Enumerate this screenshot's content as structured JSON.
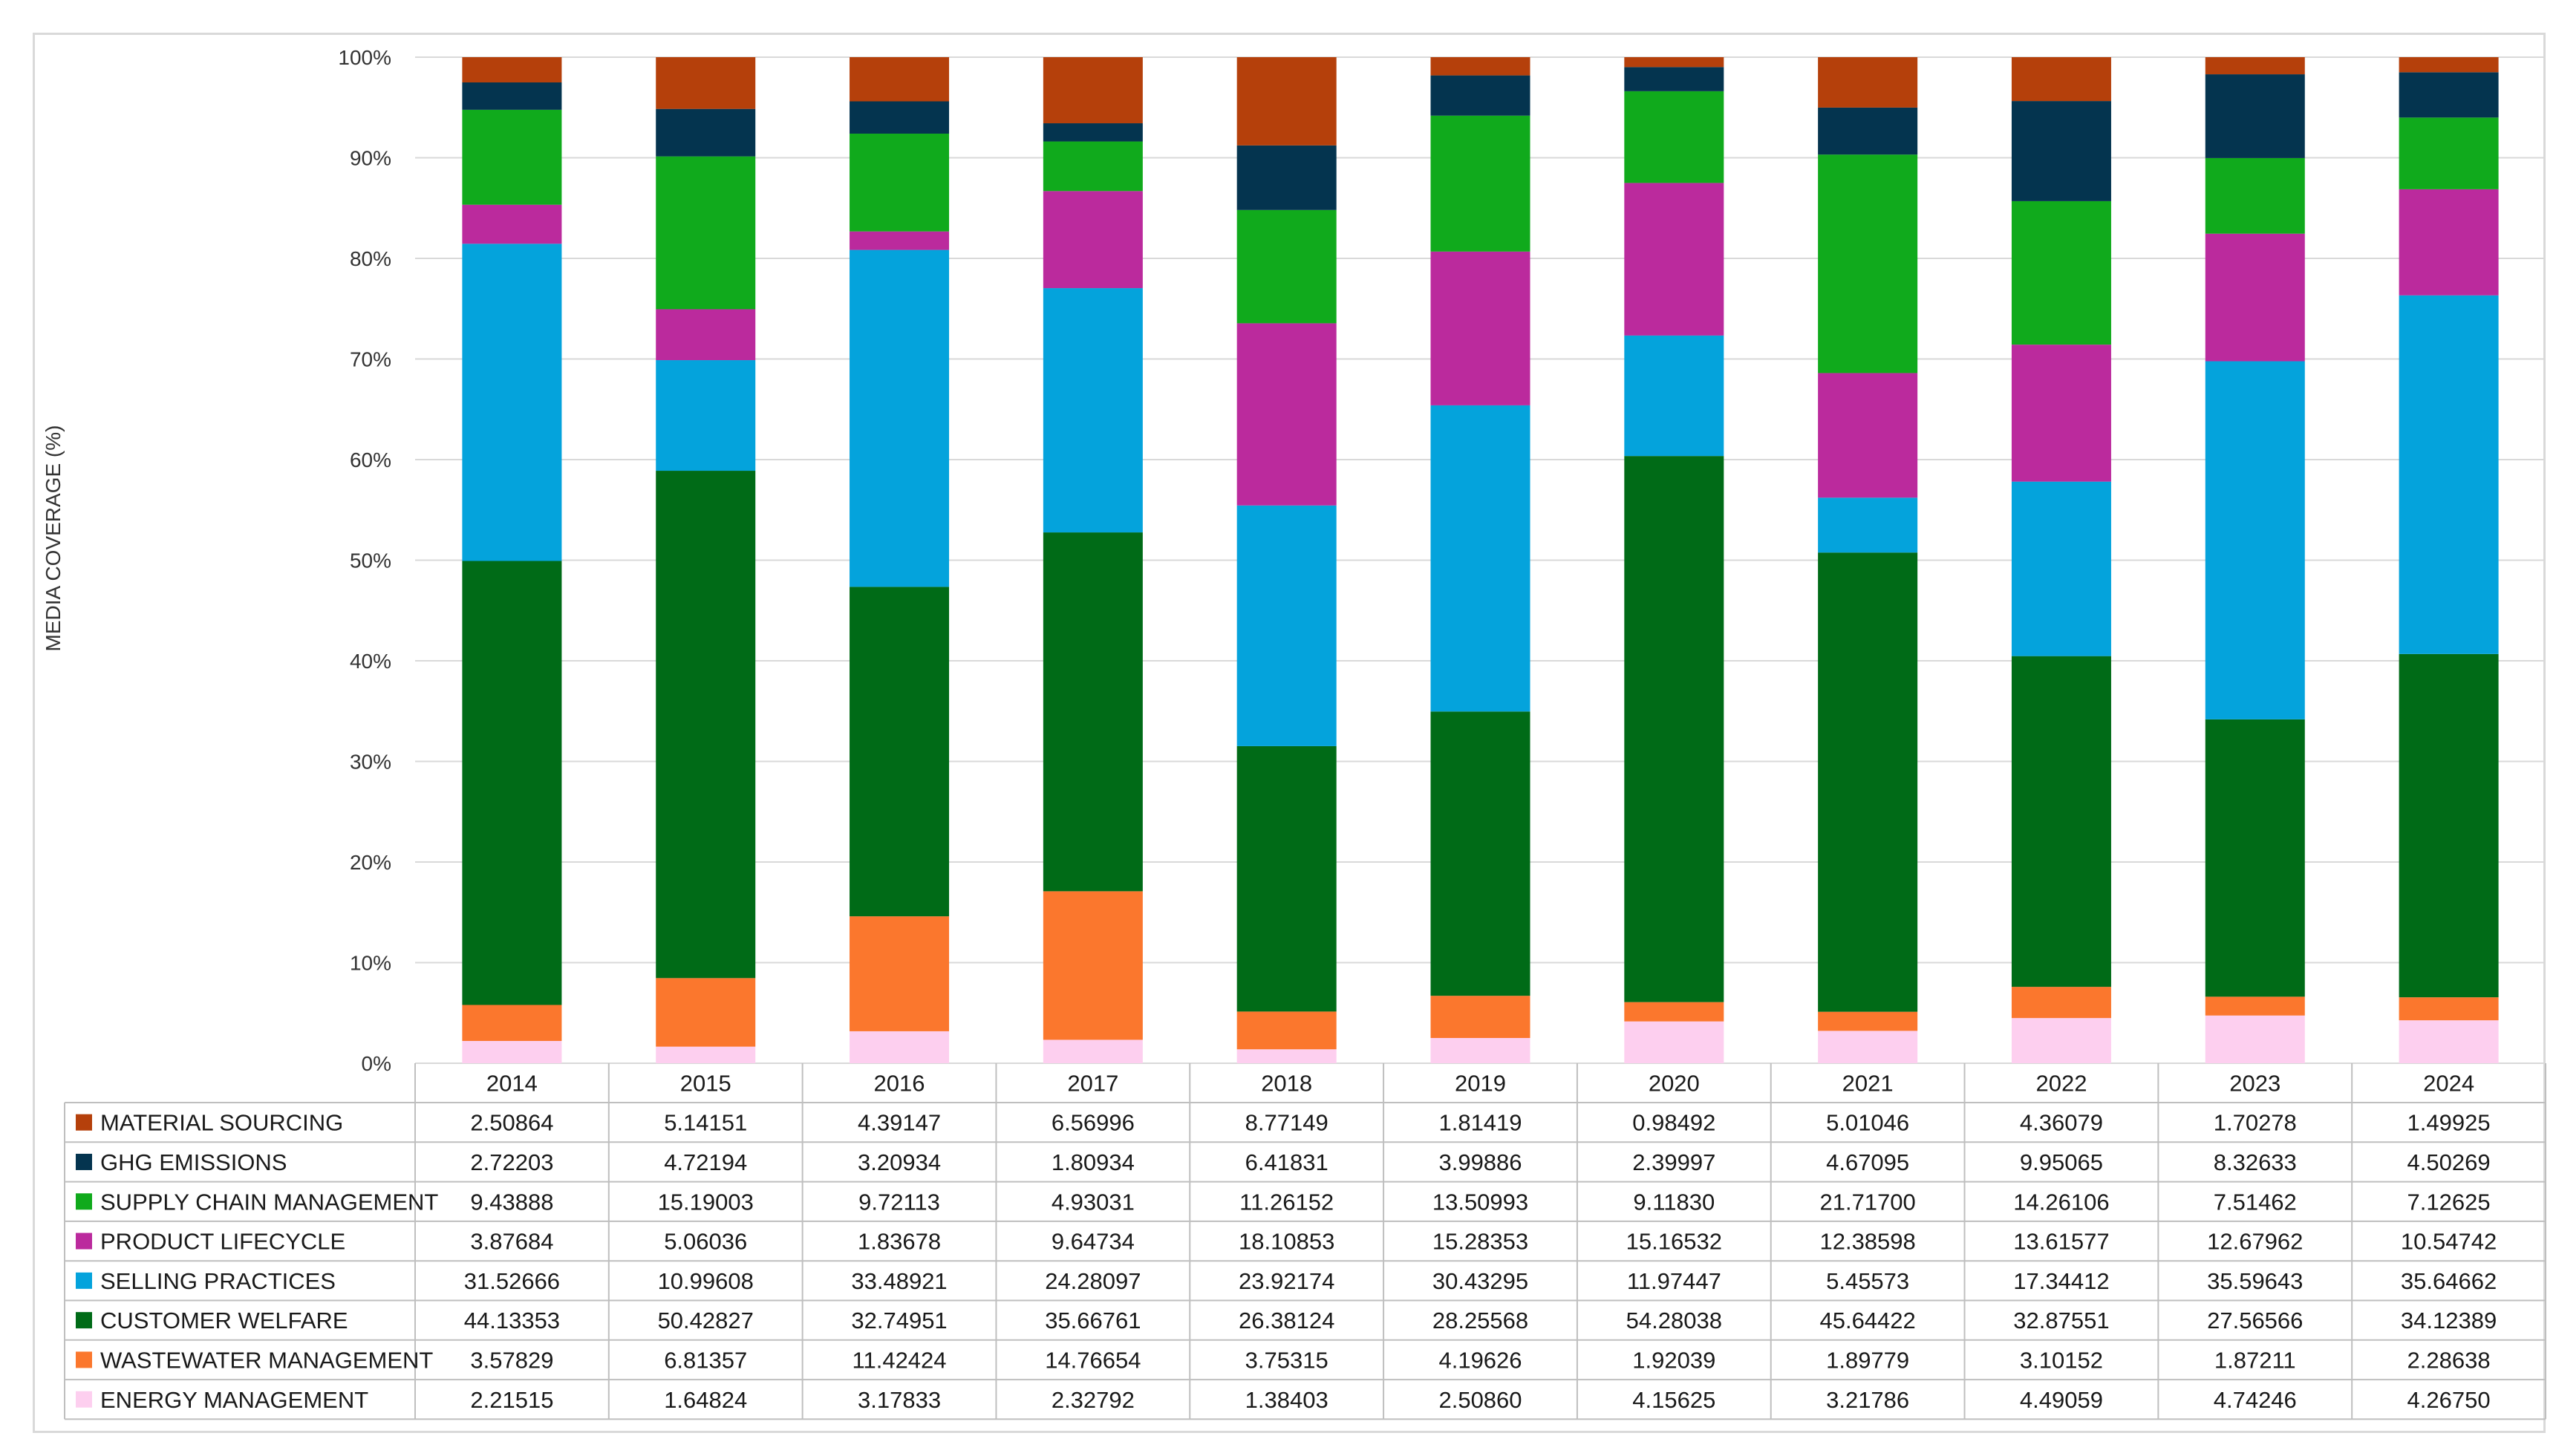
{
  "chart_data": {
    "type": "bar",
    "stacked": "percent",
    "title": "",
    "xlabel": "",
    "ylabel": "MEDIA COVERAGE (%)",
    "ylim": [
      0,
      100
    ],
    "ytick_labels": [
      "0%",
      "10%",
      "20%",
      "30%",
      "40%",
      "50%",
      "60%",
      "70%",
      "80%",
      "90%",
      "100%"
    ],
    "grid": true,
    "legend": "data-table",
    "categories": [
      "2014",
      "2015",
      "2016",
      "2017",
      "2018",
      "2019",
      "2020",
      "2021",
      "2022",
      "2023",
      "2024"
    ],
    "series": [
      {
        "name": "MATERIAL SOURCING",
        "color": "#b5400b",
        "values": [
          "2.50864",
          "5.14151",
          "4.39147",
          "6.56996",
          "8.77149",
          "1.81419",
          "0.98492",
          "5.01046",
          "4.36079",
          "1.70278",
          "1.49925"
        ]
      },
      {
        "name": "GHG EMISSIONS",
        "color": "#04344f",
        "values": [
          "2.72203",
          "4.72194",
          "3.20934",
          "1.80934",
          "6.41831",
          "3.99886",
          "2.39997",
          "4.67095",
          "9.95065",
          "8.32633",
          "4.50269"
        ]
      },
      {
        "name": "SUPPLY CHAIN MANAGEMENT",
        "color": "#10aa1c",
        "values": [
          "9.43888",
          "15.19003",
          "9.72113",
          "4.93031",
          "11.26152",
          "13.50993",
          "9.11830",
          "21.71700",
          "14.26106",
          "7.51462",
          "7.12625"
        ]
      },
      {
        "name": "PRODUCT LIFECYCLE",
        "color": "#bb2a9d",
        "values": [
          "3.87684",
          "5.06036",
          "1.83678",
          "9.64734",
          "18.10853",
          "15.28353",
          "15.16532",
          "12.38598",
          "13.61577",
          "12.67962",
          "10.54742"
        ]
      },
      {
        "name": "SELLING PRACTICES",
        "color": "#04a3dc",
        "values": [
          "31.52666",
          "10.99608",
          "33.48921",
          "24.28097",
          "23.92174",
          "30.43295",
          "11.97447",
          "5.45573",
          "17.34412",
          "35.59643",
          "35.64662"
        ]
      },
      {
        "name": "CUSTOMER WELFARE",
        "color": "#006b17",
        "values": [
          "44.13353",
          "50.42827",
          "32.74951",
          "35.66761",
          "26.38124",
          "28.25568",
          "54.28038",
          "45.64422",
          "32.87551",
          "27.56566",
          "34.12389"
        ]
      },
      {
        "name": "WASTEWATER MANAGEMENT",
        "color": "#fb772d",
        "values": [
          "3.57829",
          "6.81357",
          "11.42424",
          "14.76654",
          "3.75315",
          "4.19626",
          "1.92039",
          "1.89779",
          "3.10152",
          "1.87211",
          "2.28638"
        ]
      },
      {
        "name": "ENERGY MANAGEMENT",
        "color": "#fdcfef",
        "values": [
          "2.21515",
          "1.64824",
          "3.17833",
          "2.32792",
          "1.38403",
          "2.50860",
          "4.15625",
          "3.21786",
          "4.49059",
          "4.74246",
          "4.26750"
        ]
      }
    ]
  }
}
